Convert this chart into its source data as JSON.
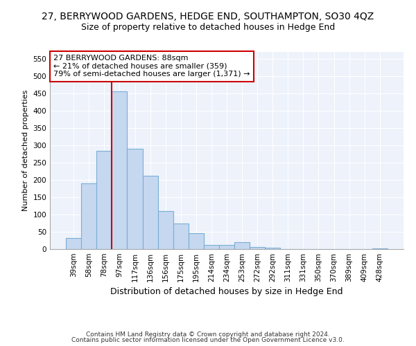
{
  "title": "27, BERRYWOOD GARDENS, HEDGE END, SOUTHAMPTON, SO30 4QZ",
  "subtitle": "Size of property relative to detached houses in Hedge End",
  "xlabel": "Distribution of detached houses by size in Hedge End",
  "ylabel": "Number of detached properties",
  "categories": [
    "39sqm",
    "58sqm",
    "78sqm",
    "97sqm",
    "117sqm",
    "136sqm",
    "156sqm",
    "175sqm",
    "195sqm",
    "214sqm",
    "234sqm",
    "253sqm",
    "272sqm",
    "292sqm",
    "311sqm",
    "331sqm",
    "350sqm",
    "370sqm",
    "389sqm",
    "409sqm",
    "428sqm"
  ],
  "values": [
    32,
    190,
    285,
    457,
    290,
    213,
    110,
    74,
    47,
    13,
    12,
    20,
    7,
    5,
    0,
    0,
    0,
    0,
    0,
    0,
    3
  ],
  "bar_color": "#c5d8f0",
  "bar_edgecolor": "#7aadd4",
  "vline_label": "27 BERRYWOOD GARDENS: 88sqm",
  "annotation_line1": "← 21% of detached houses are smaller (359)",
  "annotation_line2": "79% of semi-detached houses are larger (1,371) →",
  "vline_color": "#cc0000",
  "vline_index": 2.5,
  "ylim": [
    0,
    570
  ],
  "yticks": [
    0,
    50,
    100,
    150,
    200,
    250,
    300,
    350,
    400,
    450,
    500,
    550
  ],
  "background_color": "#edf2fb",
  "grid_color": "#ffffff",
  "footer1": "Contains HM Land Registry data © Crown copyright and database right 2024.",
  "footer2": "Contains public sector information licensed under the Open Government Licence v3.0.",
  "title_fontsize": 10,
  "subtitle_fontsize": 9,
  "ylabel_fontsize": 8,
  "xlabel_fontsize": 9,
  "tick_fontsize": 7.5,
  "footer_fontsize": 6.5
}
